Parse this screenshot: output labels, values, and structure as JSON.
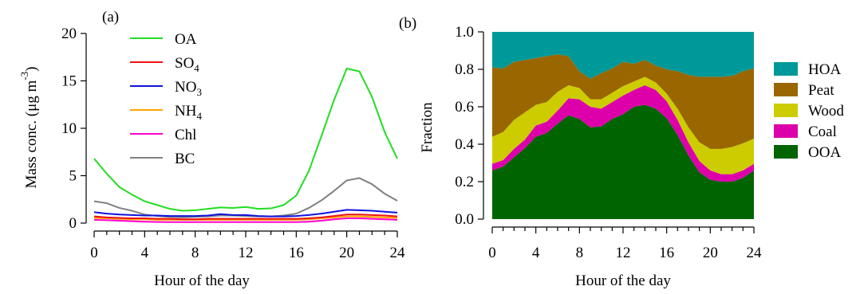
{
  "chart_data": [
    {
      "type": "line",
      "panel_label": "(a)",
      "xlabel": "Hour of the day",
      "ylabel": "Mass conc. (μg m",
      "ylabel_superscript": "-3",
      "ylabel_suffix": ")",
      "xlim": [
        0,
        24
      ],
      "ylim": [
        0,
        20
      ],
      "xticks": [
        0,
        4,
        8,
        12,
        16,
        20,
        24
      ],
      "yticks": [
        0,
        5,
        10,
        15,
        20
      ],
      "grid": false,
      "legend_placement": "top-left",
      "x": [
        0,
        1,
        2,
        3,
        4,
        5,
        6,
        7,
        8,
        9,
        10,
        11,
        12,
        13,
        14,
        15,
        16,
        17,
        18,
        19,
        20,
        21,
        22,
        23,
        24
      ],
      "series": [
        {
          "name": "OA",
          "label_main": "OA",
          "label_sub": "",
          "color": "#22dd22",
          "values": [
            6.8,
            5.2,
            3.8,
            3.0,
            2.3,
            1.9,
            1.5,
            1.3,
            1.35,
            1.5,
            1.65,
            1.6,
            1.7,
            1.5,
            1.55,
            1.9,
            2.9,
            5.5,
            9.2,
            13.0,
            16.3,
            16.0,
            13.3,
            9.6,
            6.8
          ]
        },
        {
          "name": "SO4",
          "label_main": "SO",
          "label_sub": "4",
          "color": "#ee1111",
          "values": [
            0.7,
            0.6,
            0.55,
            0.5,
            0.5,
            0.45,
            0.45,
            0.4,
            0.4,
            0.45,
            0.45,
            0.45,
            0.45,
            0.45,
            0.45,
            0.45,
            0.45,
            0.5,
            0.6,
            0.75,
            0.9,
            0.9,
            0.85,
            0.8,
            0.7
          ]
        },
        {
          "name": "NO3",
          "label_main": "NO",
          "label_sub": "3",
          "color": "#1111dd",
          "values": [
            1.15,
            1.0,
            0.9,
            0.85,
            0.8,
            0.8,
            0.75,
            0.75,
            0.75,
            0.8,
            0.95,
            0.85,
            0.85,
            0.75,
            0.7,
            0.7,
            0.75,
            0.85,
            1.0,
            1.2,
            1.4,
            1.35,
            1.3,
            1.2,
            1.1
          ]
        },
        {
          "name": "NH4",
          "label_main": "NH",
          "label_sub": "4",
          "color": "#ffa500",
          "values": [
            0.55,
            0.5,
            0.45,
            0.4,
            0.4,
            0.35,
            0.35,
            0.35,
            0.35,
            0.35,
            0.35,
            0.35,
            0.35,
            0.35,
            0.35,
            0.35,
            0.35,
            0.4,
            0.5,
            0.6,
            0.7,
            0.7,
            0.65,
            0.6,
            0.55
          ]
        },
        {
          "name": "Chl",
          "label_main": "Chl",
          "label_sub": "",
          "color": "#ff00cc",
          "values": [
            0.35,
            0.3,
            0.25,
            0.2,
            0.15,
            0.12,
            0.1,
            0.1,
            0.1,
            0.1,
            0.1,
            0.1,
            0.1,
            0.1,
            0.1,
            0.1,
            0.1,
            0.15,
            0.25,
            0.4,
            0.5,
            0.5,
            0.45,
            0.4,
            0.35
          ]
        },
        {
          "name": "BC",
          "label_main": "BC",
          "label_sub": "",
          "color": "#808080",
          "values": [
            2.3,
            2.1,
            1.6,
            1.3,
            0.9,
            0.75,
            0.65,
            0.6,
            0.65,
            0.7,
            0.8,
            0.8,
            0.75,
            0.7,
            0.7,
            0.8,
            1.0,
            1.6,
            2.4,
            3.4,
            4.5,
            4.75,
            4.1,
            3.1,
            2.35
          ]
        }
      ]
    },
    {
      "type": "area",
      "stacked": true,
      "panel_label": "(b)",
      "xlabel": "Hour of the day",
      "ylabel": "Fraction",
      "xlim": [
        0,
        24
      ],
      "ylim": [
        0,
        1.0
      ],
      "xticks": [
        0,
        4,
        8,
        12,
        16,
        20,
        24
      ],
      "yticks": [
        "0.0",
        "0.2",
        "0.4",
        "0.6",
        "0.8",
        "1.0"
      ],
      "grid": false,
      "legend_placement": "right",
      "x": [
        0,
        1,
        2,
        3,
        4,
        5,
        6,
        7,
        8,
        9,
        10,
        11,
        12,
        13,
        14,
        15,
        16,
        17,
        18,
        19,
        20,
        21,
        22,
        23,
        24
      ],
      "series": [
        {
          "name": "OOA",
          "color": "#006400",
          "values": [
            0.26,
            0.28,
            0.33,
            0.38,
            0.44,
            0.46,
            0.51,
            0.555,
            0.535,
            0.49,
            0.495,
            0.535,
            0.56,
            0.6,
            0.61,
            0.59,
            0.54,
            0.45,
            0.34,
            0.25,
            0.21,
            0.2,
            0.2,
            0.22,
            0.26
          ]
        },
        {
          "name": "Coal",
          "color": "#dd00aa",
          "values": [
            0.035,
            0.035,
            0.045,
            0.045,
            0.06,
            0.06,
            0.07,
            0.09,
            0.105,
            0.11,
            0.095,
            0.09,
            0.1,
            0.09,
            0.105,
            0.1,
            0.09,
            0.08,
            0.07,
            0.06,
            0.05,
            0.04,
            0.04,
            0.04,
            0.035
          ]
        },
        {
          "name": "Wood",
          "color": "#cccc00",
          "values": [
            0.145,
            0.15,
            0.155,
            0.145,
            0.11,
            0.105,
            0.1,
            0.07,
            0.06,
            0.04,
            0.05,
            0.05,
            0.05,
            0.045,
            0.045,
            0.04,
            0.04,
            0.06,
            0.08,
            0.1,
            0.115,
            0.135,
            0.145,
            0.145,
            0.135
          ]
        },
        {
          "name": "Peat",
          "color": "#996600",
          "values": [
            0.37,
            0.34,
            0.31,
            0.28,
            0.25,
            0.245,
            0.2,
            0.155,
            0.09,
            0.11,
            0.14,
            0.13,
            0.13,
            0.095,
            0.09,
            0.09,
            0.13,
            0.2,
            0.28,
            0.35,
            0.385,
            0.385,
            0.38,
            0.385,
            0.375
          ]
        },
        {
          "name": "HOA",
          "color": "#009999",
          "values": [
            0.19,
            0.195,
            0.16,
            0.15,
            0.14,
            0.13,
            0.12,
            0.13,
            0.21,
            0.25,
            0.22,
            0.195,
            0.16,
            0.17,
            0.15,
            0.18,
            0.2,
            0.21,
            0.23,
            0.24,
            0.24,
            0.24,
            0.235,
            0.21,
            0.195
          ]
        }
      ],
      "legend_order": [
        "HOA",
        "Peat",
        "Wood",
        "Coal",
        "OOA"
      ]
    }
  ]
}
